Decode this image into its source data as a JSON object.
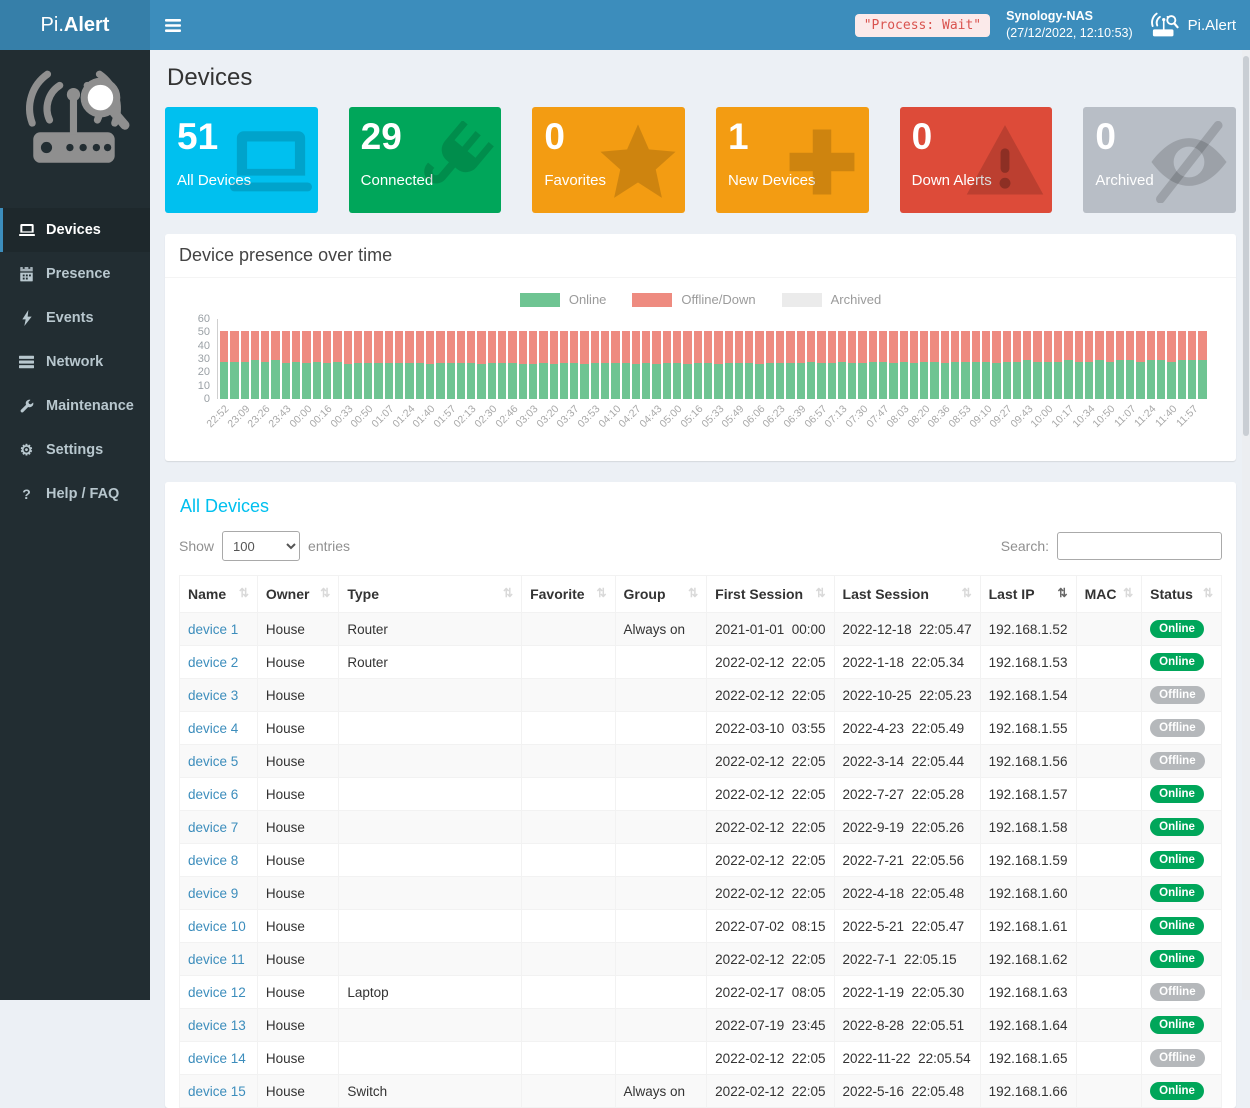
{
  "navbar": {
    "logo_prefix": "Pi.",
    "logo_bold": "Alert",
    "process_status": "\"Process: Wait\"",
    "host_name": "Synology-NAS",
    "host_datetime": "(27/12/2022, 12:10:53)",
    "brand": "Pi.Alert"
  },
  "sidebar": {
    "items": [
      {
        "label": "Devices",
        "active": true
      },
      {
        "label": "Presence",
        "active": false
      },
      {
        "label": "Events",
        "active": false
      },
      {
        "label": "Network",
        "active": false
      },
      {
        "label": "Maintenance",
        "active": false
      },
      {
        "label": "Settings",
        "active": false
      },
      {
        "label": "Help / FAQ",
        "active": false
      }
    ]
  },
  "page": {
    "title": "Devices"
  },
  "cards": [
    {
      "value": "51",
      "label": "All Devices",
      "color": "#00c0ef",
      "icon": "laptop-icon"
    },
    {
      "value": "29",
      "label": "Connected",
      "color": "#00a65a",
      "icon": "plug-icon"
    },
    {
      "value": "0",
      "label": "Favorites",
      "color": "#f39c12",
      "icon": "star-icon"
    },
    {
      "value": "1",
      "label": "New Devices",
      "color": "#f39c12",
      "icon": "plus-icon"
    },
    {
      "value": "0",
      "label": "Down Alerts",
      "color": "#dd4b39",
      "icon": "warning-icon"
    },
    {
      "value": "0",
      "label": "Archived",
      "color": "#b8bec6",
      "icon": "eye-slash-icon"
    }
  ],
  "chart_data": {
    "type": "bar",
    "stacked": true,
    "title": "Device presence over time",
    "xlabel": "",
    "ylabel": "",
    "ylim": [
      0,
      60
    ],
    "yticks": [
      0,
      10,
      20,
      30,
      40,
      50,
      60
    ],
    "grid": false,
    "legend_position": "top-center",
    "label_every_n_bars": 2,
    "x_labels": [
      "22:52",
      "23:09",
      "23:26",
      "23:43",
      "00:00",
      "00:16",
      "00:33",
      "00:50",
      "01:07",
      "01:24",
      "01:40",
      "01:57",
      "02:13",
      "02:30",
      "02:46",
      "03:03",
      "03:20",
      "03:37",
      "03:53",
      "04:10",
      "04:27",
      "04:43",
      "05:00",
      "05:16",
      "05:33",
      "05:49",
      "06:06",
      "06:23",
      "06:39",
      "06:57",
      "07:13",
      "07:30",
      "07:47",
      "08:03",
      "08:20",
      "08:36",
      "08:53",
      "09:10",
      "09:27",
      "09:43",
      "10:00",
      "10:17",
      "10:34",
      "10:50",
      "11:07",
      "11:24",
      "11:40",
      "11:57"
    ],
    "series": [
      {
        "name": "Online",
        "color": "#6ec492",
        "values": [
          28,
          28,
          28,
          29,
          28,
          29,
          27,
          28,
          27,
          28,
          27,
          28,
          26,
          27,
          27,
          27,
          27,
          27,
          27,
          27,
          26,
          27,
          27,
          27,
          27,
          26,
          27,
          27,
          27,
          26,
          26,
          27,
          26,
          27,
          27,
          26,
          27,
          27,
          27,
          27,
          26,
          27,
          26,
          27,
          27,
          26,
          27,
          27,
          26,
          27,
          27,
          27,
          26,
          27,
          27,
          27,
          27,
          28,
          27,
          27,
          28,
          27,
          27,
          28,
          28,
          27,
          28,
          27,
          28,
          28,
          27,
          28,
          28,
          28,
          28,
          27,
          28,
          28,
          29,
          28,
          28,
          28,
          29,
          28,
          28,
          29,
          28,
          29,
          29,
          28,
          29,
          29,
          28,
          29,
          29,
          29
        ]
      },
      {
        "name": "Offline/Down",
        "color": "#ee8b80",
        "values": [
          23,
          23,
          23,
          22,
          23,
          22,
          24,
          23,
          24,
          23,
          24,
          23,
          25,
          24,
          24,
          24,
          24,
          24,
          24,
          24,
          25,
          24,
          24,
          24,
          24,
          25,
          24,
          24,
          24,
          25,
          25,
          24,
          25,
          24,
          24,
          25,
          24,
          24,
          24,
          24,
          25,
          24,
          25,
          24,
          24,
          25,
          24,
          24,
          25,
          24,
          24,
          24,
          25,
          24,
          24,
          24,
          24,
          23,
          24,
          24,
          23,
          24,
          24,
          23,
          23,
          24,
          23,
          24,
          23,
          23,
          24,
          23,
          23,
          23,
          23,
          24,
          23,
          23,
          22,
          23,
          23,
          23,
          22,
          23,
          23,
          22,
          23,
          22,
          22,
          23,
          22,
          22,
          23,
          22,
          22,
          22
        ]
      },
      {
        "name": "Archived",
        "color": "#ebebeb",
        "values": [
          0,
          0,
          0,
          0,
          0,
          0,
          0,
          0,
          0,
          0,
          0,
          0,
          0,
          0,
          0,
          0,
          0,
          0,
          0,
          0,
          0,
          0,
          0,
          0,
          0,
          0,
          0,
          0,
          0,
          0,
          0,
          0,
          0,
          0,
          0,
          0,
          0,
          0,
          0,
          0,
          0,
          0,
          0,
          0,
          0,
          0,
          0,
          0,
          0,
          0,
          0,
          0,
          0,
          0,
          0,
          0,
          0,
          0,
          0,
          0,
          0,
          0,
          0,
          0,
          0,
          0,
          0,
          0,
          0,
          0,
          0,
          0,
          0,
          0,
          0,
          0,
          0,
          0,
          0,
          0,
          0,
          0,
          0,
          0,
          0,
          0,
          0,
          0,
          0,
          0,
          0,
          0,
          0,
          0,
          0,
          0
        ]
      }
    ]
  },
  "table": {
    "title": "All Devices",
    "show_label": "Show",
    "entries_label": "entries",
    "page_length": "100",
    "search_label": "Search:",
    "search_value": "",
    "status_colors": {
      "Online": "#00a65a",
      "Offline": "#b5b8bb"
    },
    "columns": [
      {
        "label": "Name",
        "sorted": false
      },
      {
        "label": "Owner",
        "sorted": false
      },
      {
        "label": "Type",
        "sorted": false
      },
      {
        "label": "Favorite",
        "sorted": false
      },
      {
        "label": "Group",
        "sorted": false
      },
      {
        "label": "First Session",
        "sorted": false
      },
      {
        "label": "Last Session",
        "sorted": false
      },
      {
        "label": "Last IP",
        "sorted": true
      },
      {
        "label": "MAC",
        "sorted": false
      },
      {
        "label": "Status",
        "sorted": false
      }
    ],
    "rows": [
      {
        "name": "device 1",
        "owner": "House",
        "type": "Router",
        "favorite": "",
        "group": "Always on",
        "first_session": "2021-01-01  00:00",
        "last_session": "2022-12-18  22:05.47",
        "last_ip": "192.168.1.52",
        "mac": "",
        "status": "Online"
      },
      {
        "name": "device 2",
        "owner": "House",
        "type": "Router",
        "favorite": "",
        "group": "",
        "first_session": "2022-02-12  22:05",
        "last_session": "2022-1-18  22:05.34",
        "last_ip": "192.168.1.53",
        "mac": "",
        "status": "Online"
      },
      {
        "name": "device 3",
        "owner": "House",
        "type": "",
        "favorite": "",
        "group": "",
        "first_session": "2022-02-12  22:05",
        "last_session": "2022-10-25  22:05.23",
        "last_ip": "192.168.1.54",
        "mac": "",
        "status": "Offline"
      },
      {
        "name": "device 4",
        "owner": "House",
        "type": "",
        "favorite": "",
        "group": "",
        "first_session": "2022-03-10  03:55",
        "last_session": "2022-4-23  22:05.49",
        "last_ip": "192.168.1.55",
        "mac": "",
        "status": "Offline"
      },
      {
        "name": "device 5",
        "owner": "House",
        "type": "",
        "favorite": "",
        "group": "",
        "first_session": "2022-02-12  22:05",
        "last_session": "2022-3-14  22:05.44",
        "last_ip": "192.168.1.56",
        "mac": "",
        "status": "Offline"
      },
      {
        "name": "device 6",
        "owner": "House",
        "type": "",
        "favorite": "",
        "group": "",
        "first_session": "2022-02-12  22:05",
        "last_session": "2022-7-27  22:05.28",
        "last_ip": "192.168.1.57",
        "mac": "",
        "status": "Online"
      },
      {
        "name": "device 7",
        "owner": "House",
        "type": "",
        "favorite": "",
        "group": "",
        "first_session": "2022-02-12  22:05",
        "last_session": "2022-9-19  22:05.26",
        "last_ip": "192.168.1.58",
        "mac": "",
        "status": "Online"
      },
      {
        "name": "device 8",
        "owner": "House",
        "type": "",
        "favorite": "",
        "group": "",
        "first_session": "2022-02-12  22:05",
        "last_session": "2022-7-21  22:05.56",
        "last_ip": "192.168.1.59",
        "mac": "",
        "status": "Online"
      },
      {
        "name": "device 9",
        "owner": "House",
        "type": "",
        "favorite": "",
        "group": "",
        "first_session": "2022-02-12  22:05",
        "last_session": "2022-4-18  22:05.48",
        "last_ip": "192.168.1.60",
        "mac": "",
        "status": "Online"
      },
      {
        "name": "device 10",
        "owner": "House",
        "type": "",
        "favorite": "",
        "group": "",
        "first_session": "2022-07-02  08:15",
        "last_session": "2022-5-21  22:05.47",
        "last_ip": "192.168.1.61",
        "mac": "",
        "status": "Online"
      },
      {
        "name": "device 11",
        "owner": "House",
        "type": "",
        "favorite": "",
        "group": "",
        "first_session": "2022-02-12  22:05",
        "last_session": "2022-7-1  22:05.15",
        "last_ip": "192.168.1.62",
        "mac": "",
        "status": "Online"
      },
      {
        "name": "device 12",
        "owner": "House",
        "type": "Laptop",
        "favorite": "",
        "group": "",
        "first_session": "2022-02-17  08:05",
        "last_session": "2022-1-19  22:05.30",
        "last_ip": "192.168.1.63",
        "mac": "",
        "status": "Offline"
      },
      {
        "name": "device 13",
        "owner": "House",
        "type": "",
        "favorite": "",
        "group": "",
        "first_session": "2022-07-19  23:45",
        "last_session": "2022-8-28  22:05.51",
        "last_ip": "192.168.1.64",
        "mac": "",
        "status": "Online"
      },
      {
        "name": "device 14",
        "owner": "House",
        "type": "",
        "favorite": "",
        "group": "",
        "first_session": "2022-02-12  22:05",
        "last_session": "2022-11-22  22:05.54",
        "last_ip": "192.168.1.65",
        "mac": "",
        "status": "Offline"
      },
      {
        "name": "device 15",
        "owner": "House",
        "type": "Switch",
        "favorite": "",
        "group": "Always on",
        "first_session": "2022-02-12  22:05",
        "last_session": "2022-5-16  22:05.48",
        "last_ip": "192.168.1.66",
        "mac": "",
        "status": "Online"
      }
    ]
  },
  "theme": {
    "navbar": "#3c8dbc",
    "navbar_logo": "#367fa9",
    "sidebar": "#222d32",
    "accent": "#00c0ef",
    "link": "#3c8dbc"
  }
}
